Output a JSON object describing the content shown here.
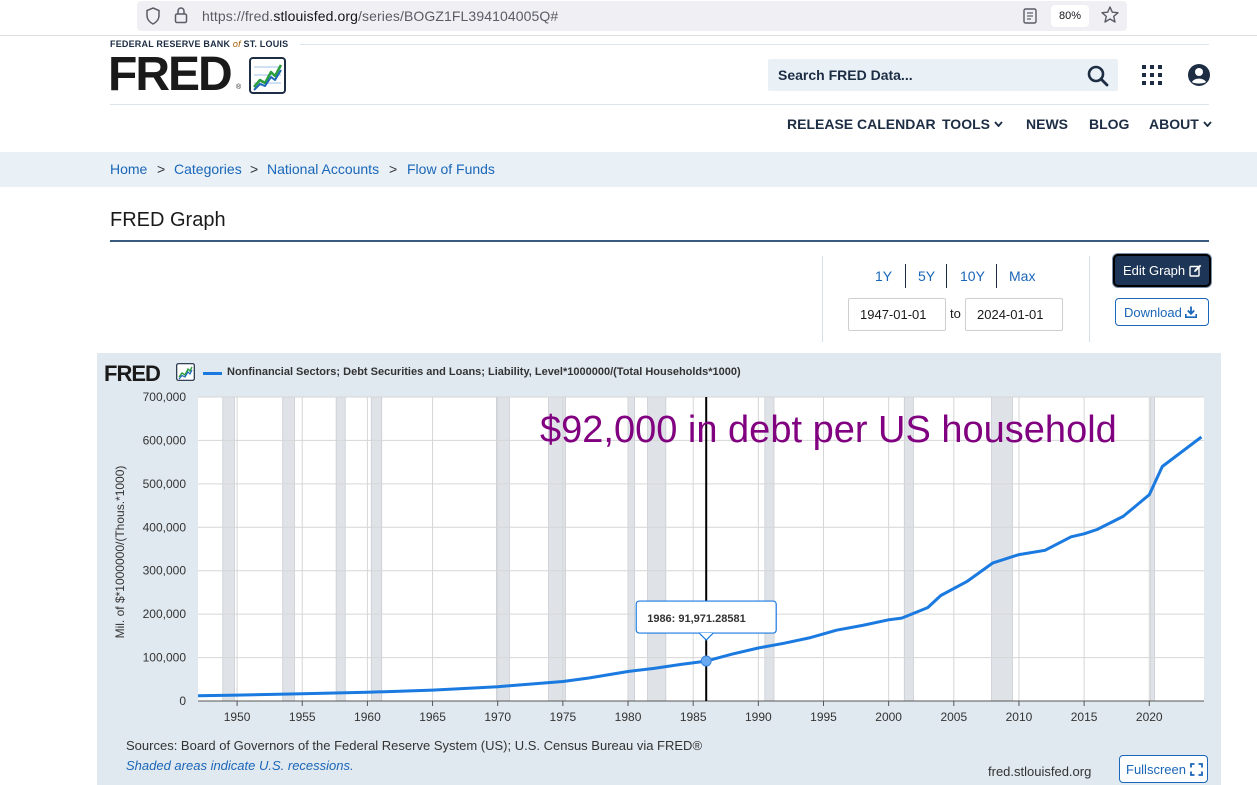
{
  "browser": {
    "url_prefix": "https://fred.",
    "url_domain": "stlouisfed.org",
    "url_path": "/series/BOGZ1FL394104005Q#",
    "zoom": "80%"
  },
  "header": {
    "bank_name_1": "FEDERAL RESERVE BANK",
    "bank_of": "of",
    "bank_name_2": "ST. LOUIS",
    "logo": "FRED",
    "logo_reg": "®",
    "search_placeholder": "Search FRED Data...",
    "nav": [
      "RELEASE CALENDAR",
      "TOOLS",
      "NEWS",
      "BLOG",
      "ABOUT"
    ]
  },
  "breadcrumb": [
    "Home",
    "Categories",
    "National Accounts",
    "Flow of Funds"
  ],
  "breadcrumb_sep": ">",
  "page_title": "FRED Graph",
  "range": {
    "buttons": [
      "1Y",
      "5Y",
      "10Y",
      "Max"
    ],
    "start": "1947-01-01",
    "to_label": "to",
    "end": "2024-01-01"
  },
  "buttons": {
    "edit": "Edit Graph",
    "download": "Download",
    "fullscreen": "Fullscreen"
  },
  "chart_data": {
    "type": "line",
    "logo": "FRED",
    "title": "Nonfinancial Sectors; Debt Securities and Loans; Liability, Level*1000000/(Total Households*1000)",
    "ylabel": "Mil. of $*1000000/(Thous.*1000)",
    "xlabel": "",
    "xlim": [
      1947,
      2024.2
    ],
    "ylim": [
      0,
      700000
    ],
    "y_ticks": [
      0,
      100000,
      200000,
      300000,
      400000,
      500000,
      600000,
      700000
    ],
    "y_tick_labels": [
      "0",
      "100,000",
      "200,000",
      "300,000",
      "400,000",
      "500,000",
      "600,000",
      "700,000"
    ],
    "x_ticks": [
      1950,
      1955,
      1960,
      1965,
      1970,
      1975,
      1980,
      1985,
      1990,
      1995,
      2000,
      2005,
      2010,
      2015,
      2020
    ],
    "grid": true,
    "series_color": "#1a7ae0",
    "series": [
      {
        "name": "Nonfinancial Sectors; Debt Securities and Loans; Liability, Level*1000000/(Total Households*1000)",
        "x": [
          1947,
          1950,
          1955,
          1960,
          1965,
          1970,
          1975,
          1977,
          1980,
          1982,
          1984,
          1986,
          1988,
          1990,
          1992,
          1994,
          1996,
          1998,
          2000,
          2001,
          2003,
          2004,
          2006,
          2008,
          2010,
          2012,
          2014,
          2015,
          2016,
          2018,
          2019,
          2020,
          2021,
          2024
        ],
        "y": [
          12000,
          13500,
          16500,
          20000,
          25000,
          33000,
          45000,
          53000,
          68000,
          75000,
          84000,
          91971,
          108000,
          122000,
          133000,
          146000,
          163000,
          174000,
          187000,
          191000,
          215000,
          243000,
          275000,
          318000,
          337000,
          347000,
          378000,
          385000,
          395000,
          425000,
          450000,
          475000,
          540000,
          608000
        ]
      }
    ],
    "recessions": [
      [
        1948.9,
        1949.8
      ],
      [
        1953.5,
        1954.4
      ],
      [
        1957.6,
        1958.3
      ],
      [
        1960.3,
        1961.1
      ],
      [
        1969.9,
        1970.9
      ],
      [
        1973.9,
        1975.2
      ],
      [
        1980.0,
        1980.5
      ],
      [
        1981.5,
        1982.9
      ],
      [
        1990.5,
        1991.2
      ],
      [
        2001.2,
        2001.9
      ],
      [
        2007.9,
        2009.5
      ],
      [
        2020.1,
        2020.4
      ]
    ],
    "crosshair_x": 1986,
    "tooltip": "1986:  91,971.28581",
    "annotation": "$92,000 in debt per US household",
    "annotation_color": "#800080",
    "sources": "Sources: Board of Governors of the Federal Reserve System (US); U.S. Census Bureau via FRED®",
    "shaded_note": "Shaded areas indicate U.S. recessions.",
    "site": "fred.stlouisfed.org"
  }
}
